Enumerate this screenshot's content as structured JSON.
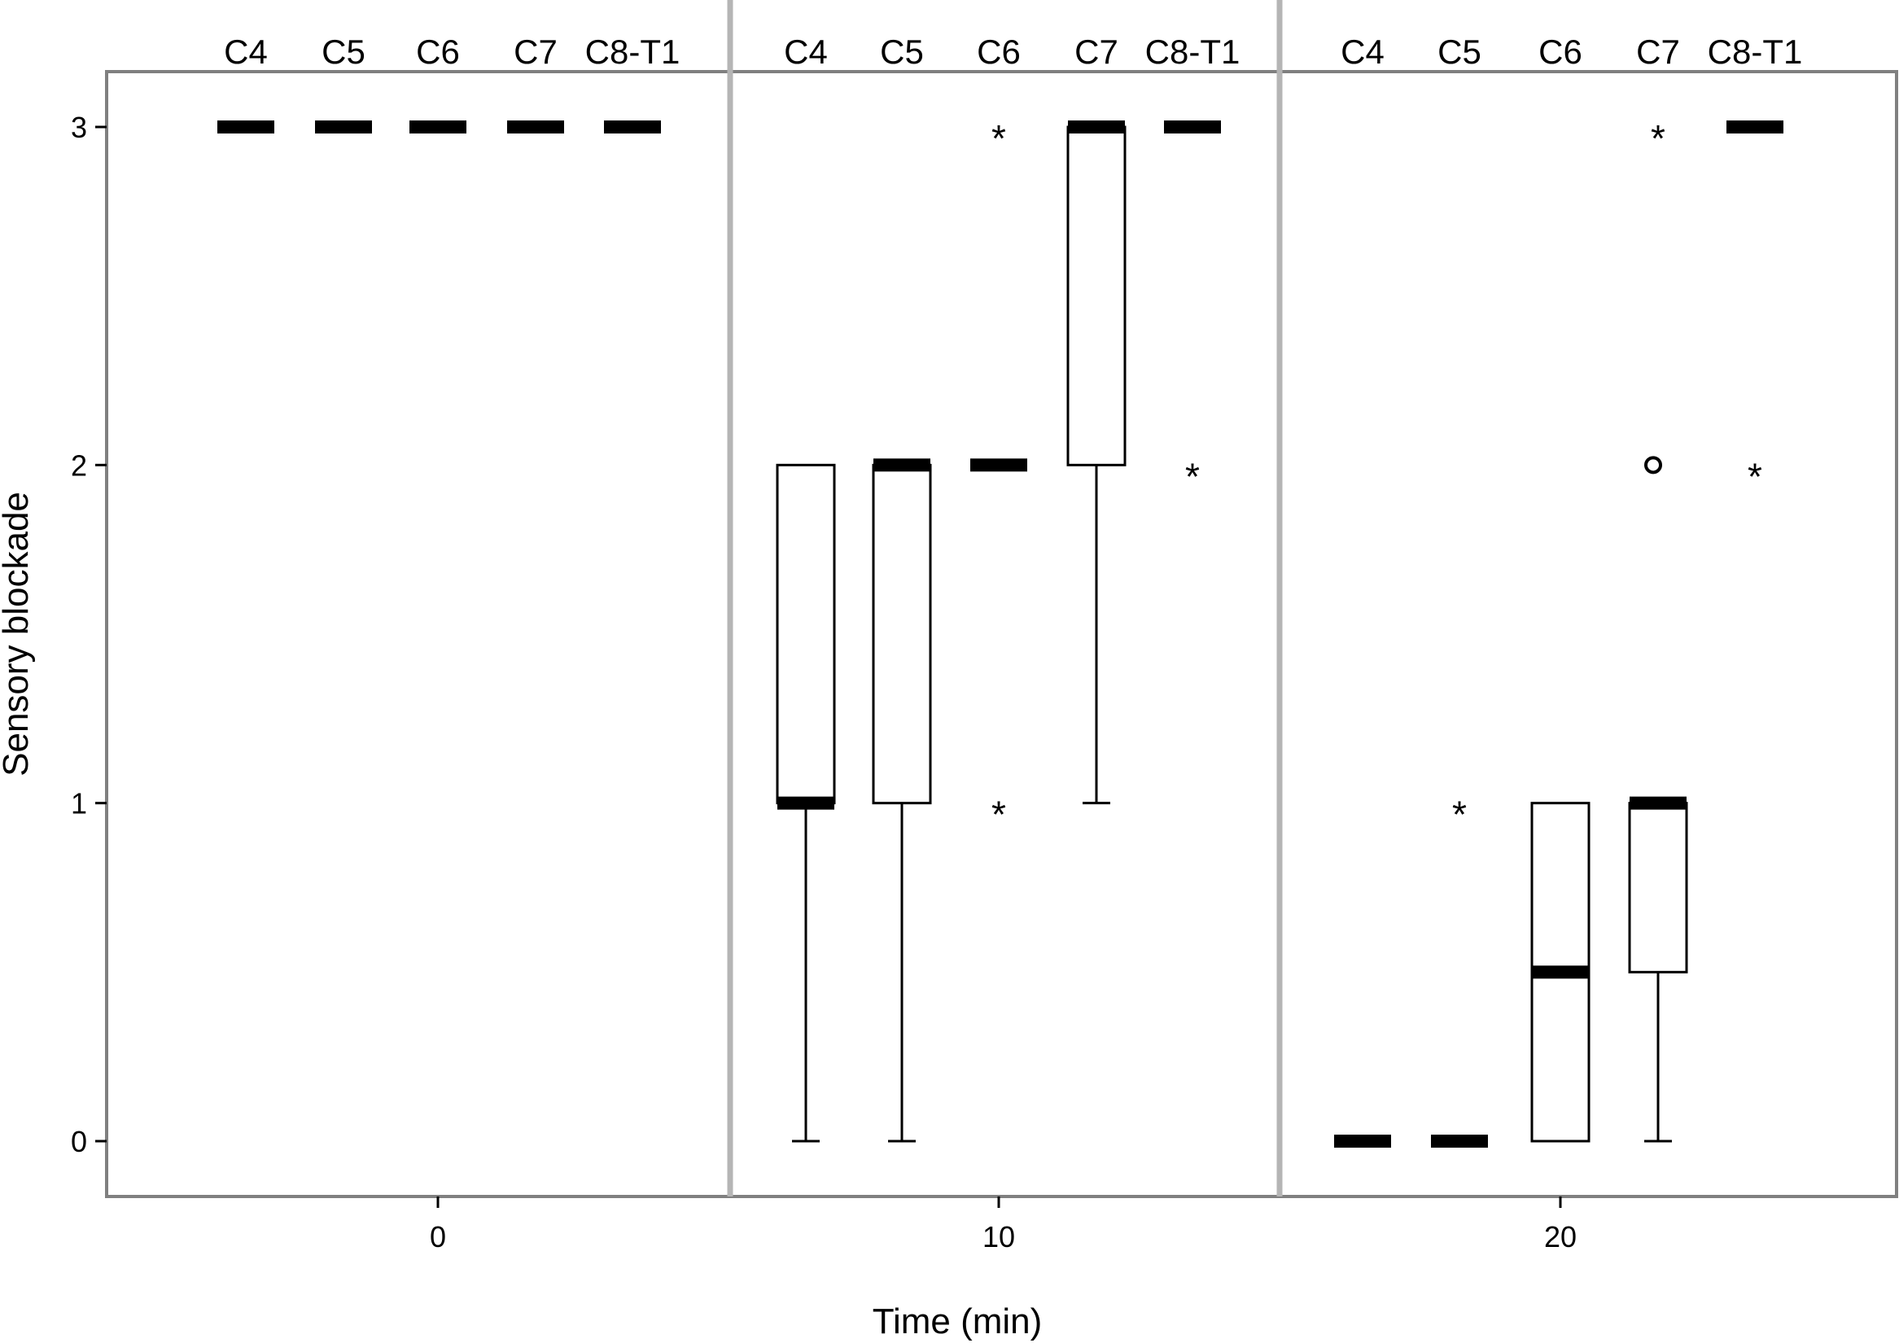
{
  "chart_data": {
    "type": "boxplot",
    "title": "",
    "xlabel": "Time (min)",
    "ylabel": "Sensory blockade",
    "ylim": [
      -0.17,
      3.17
    ],
    "yticks": [
      0,
      1,
      2,
      3
    ],
    "grid": false,
    "groups": [
      {
        "time": "0",
        "boxes": [
          {
            "name": "C4",
            "min": 3,
            "q1": 3,
            "median": 3,
            "q3": 3,
            "max": 3,
            "outliers": [],
            "extremes": []
          },
          {
            "name": "C5",
            "min": 3,
            "q1": 3,
            "median": 3,
            "q3": 3,
            "max": 3,
            "outliers": [],
            "extremes": []
          },
          {
            "name": "C6",
            "min": 3,
            "q1": 3,
            "median": 3,
            "q3": 3,
            "max": 3,
            "outliers": [],
            "extremes": []
          },
          {
            "name": "C7",
            "min": 3,
            "q1": 3,
            "median": 3,
            "q3": 3,
            "max": 3,
            "outliers": [],
            "extremes": []
          },
          {
            "name": "C8-T1",
            "min": 3,
            "q1": 3,
            "median": 3,
            "q3": 3,
            "max": 3,
            "outliers": [],
            "extremes": []
          }
        ]
      },
      {
        "time": "10",
        "boxes": [
          {
            "name": "C4",
            "min": 0,
            "q1": 1,
            "median": 1,
            "q3": 2,
            "max": 2,
            "outliers": [],
            "extremes": []
          },
          {
            "name": "C5",
            "min": 0,
            "q1": 1,
            "median": 2,
            "q3": 2,
            "max": 2,
            "outliers": [],
            "extremes": []
          },
          {
            "name": "C6",
            "min": 2,
            "q1": 2,
            "median": 2,
            "q3": 2,
            "max": 2,
            "outliers": [],
            "extremes": [
              3,
              1
            ]
          },
          {
            "name": "C7",
            "min": 1,
            "q1": 2,
            "median": 3,
            "q3": 3,
            "max": 3,
            "outliers": [],
            "extremes": []
          },
          {
            "name": "C8-T1",
            "min": 3,
            "q1": 3,
            "median": 3,
            "q3": 3,
            "max": 3,
            "outliers": [],
            "extremes": [
              2
            ]
          }
        ]
      },
      {
        "time": "20",
        "boxes": [
          {
            "name": "C4",
            "min": 0,
            "q1": 0,
            "median": 0,
            "q3": 0,
            "max": 0,
            "outliers": [],
            "extremes": []
          },
          {
            "name": "C5",
            "min": 0,
            "q1": 0,
            "median": 0,
            "q3": 0,
            "max": 0,
            "outliers": [],
            "extremes": [
              1
            ]
          },
          {
            "name": "C6",
            "min": 0,
            "q1": 0,
            "median": 0.5,
            "q3": 1,
            "max": 1,
            "outliers": [],
            "extremes": []
          },
          {
            "name": "C7",
            "min": 0,
            "q1": 0.5,
            "median": 1,
            "q3": 1,
            "max": 1,
            "outliers": [
              2
            ],
            "extremes": [
              3
            ]
          },
          {
            "name": "C8-T1",
            "min": 3,
            "q1": 3,
            "median": 3,
            "q3": 3,
            "max": 3,
            "outliers": [],
            "extremes": [
              2
            ]
          }
        ]
      }
    ]
  }
}
